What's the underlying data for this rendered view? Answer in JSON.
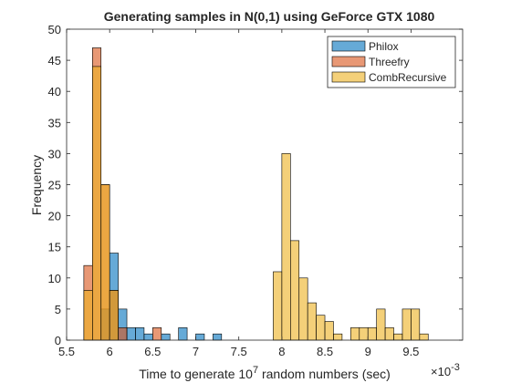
{
  "chart_data": {
    "type": "bar",
    "title": "Generating samples in N(0,1) using GeForce GTX 1080",
    "xlabel_prefix": "Time to generate 10",
    "xlabel_sup": "7",
    "xlabel_suffix": " random numbers (sec)",
    "ylabel": "Frequency",
    "x_exponent_label": "×10",
    "x_exponent_power": "-3",
    "xlim": [
      5.5,
      10.1
    ],
    "ylim": [
      0,
      50
    ],
    "xticks": [
      5.5,
      6,
      6.5,
      7,
      7.5,
      8,
      8.5,
      9,
      9.5
    ],
    "yticks": [
      0,
      5,
      10,
      15,
      20,
      25,
      30,
      35,
      40,
      45,
      50
    ],
    "bin_width": 0.1,
    "legend_position": "top-right",
    "series": [
      {
        "name": "Philox",
        "color": "#0072BD",
        "bins": [
          [
            5.9,
            5
          ],
          [
            6.0,
            14
          ],
          [
            6.1,
            5
          ],
          [
            6.2,
            2
          ],
          [
            6.3,
            2
          ],
          [
            6.4,
            1
          ],
          [
            6.6,
            1
          ],
          [
            6.8,
            2
          ],
          [
            7.0,
            1
          ],
          [
            7.2,
            1
          ]
        ]
      },
      {
        "name": "Threefry",
        "color": "#D95319",
        "bins": [
          [
            5.7,
            12
          ],
          [
            5.8,
            47
          ],
          [
            5.9,
            25
          ],
          [
            6.0,
            8
          ],
          [
            6.1,
            2
          ],
          [
            6.5,
            2
          ]
        ]
      },
      {
        "name": "CombRecursive",
        "color": "#EDB120",
        "bins": [
          [
            5.7,
            8
          ],
          [
            5.8,
            44
          ],
          [
            5.9,
            25
          ],
          [
            6.0,
            8
          ],
          [
            7.9,
            11
          ],
          [
            8.0,
            30
          ],
          [
            8.1,
            16
          ],
          [
            8.2,
            10
          ],
          [
            8.3,
            6
          ],
          [
            8.4,
            4
          ],
          [
            8.5,
            3
          ],
          [
            8.6,
            1
          ],
          [
            8.8,
            2
          ],
          [
            8.9,
            2
          ],
          [
            9.0,
            2
          ],
          [
            9.1,
            5
          ],
          [
            9.2,
            2
          ],
          [
            9.3,
            1
          ],
          [
            9.4,
            5
          ],
          [
            9.5,
            5
          ],
          [
            9.6,
            1
          ]
        ]
      }
    ]
  }
}
